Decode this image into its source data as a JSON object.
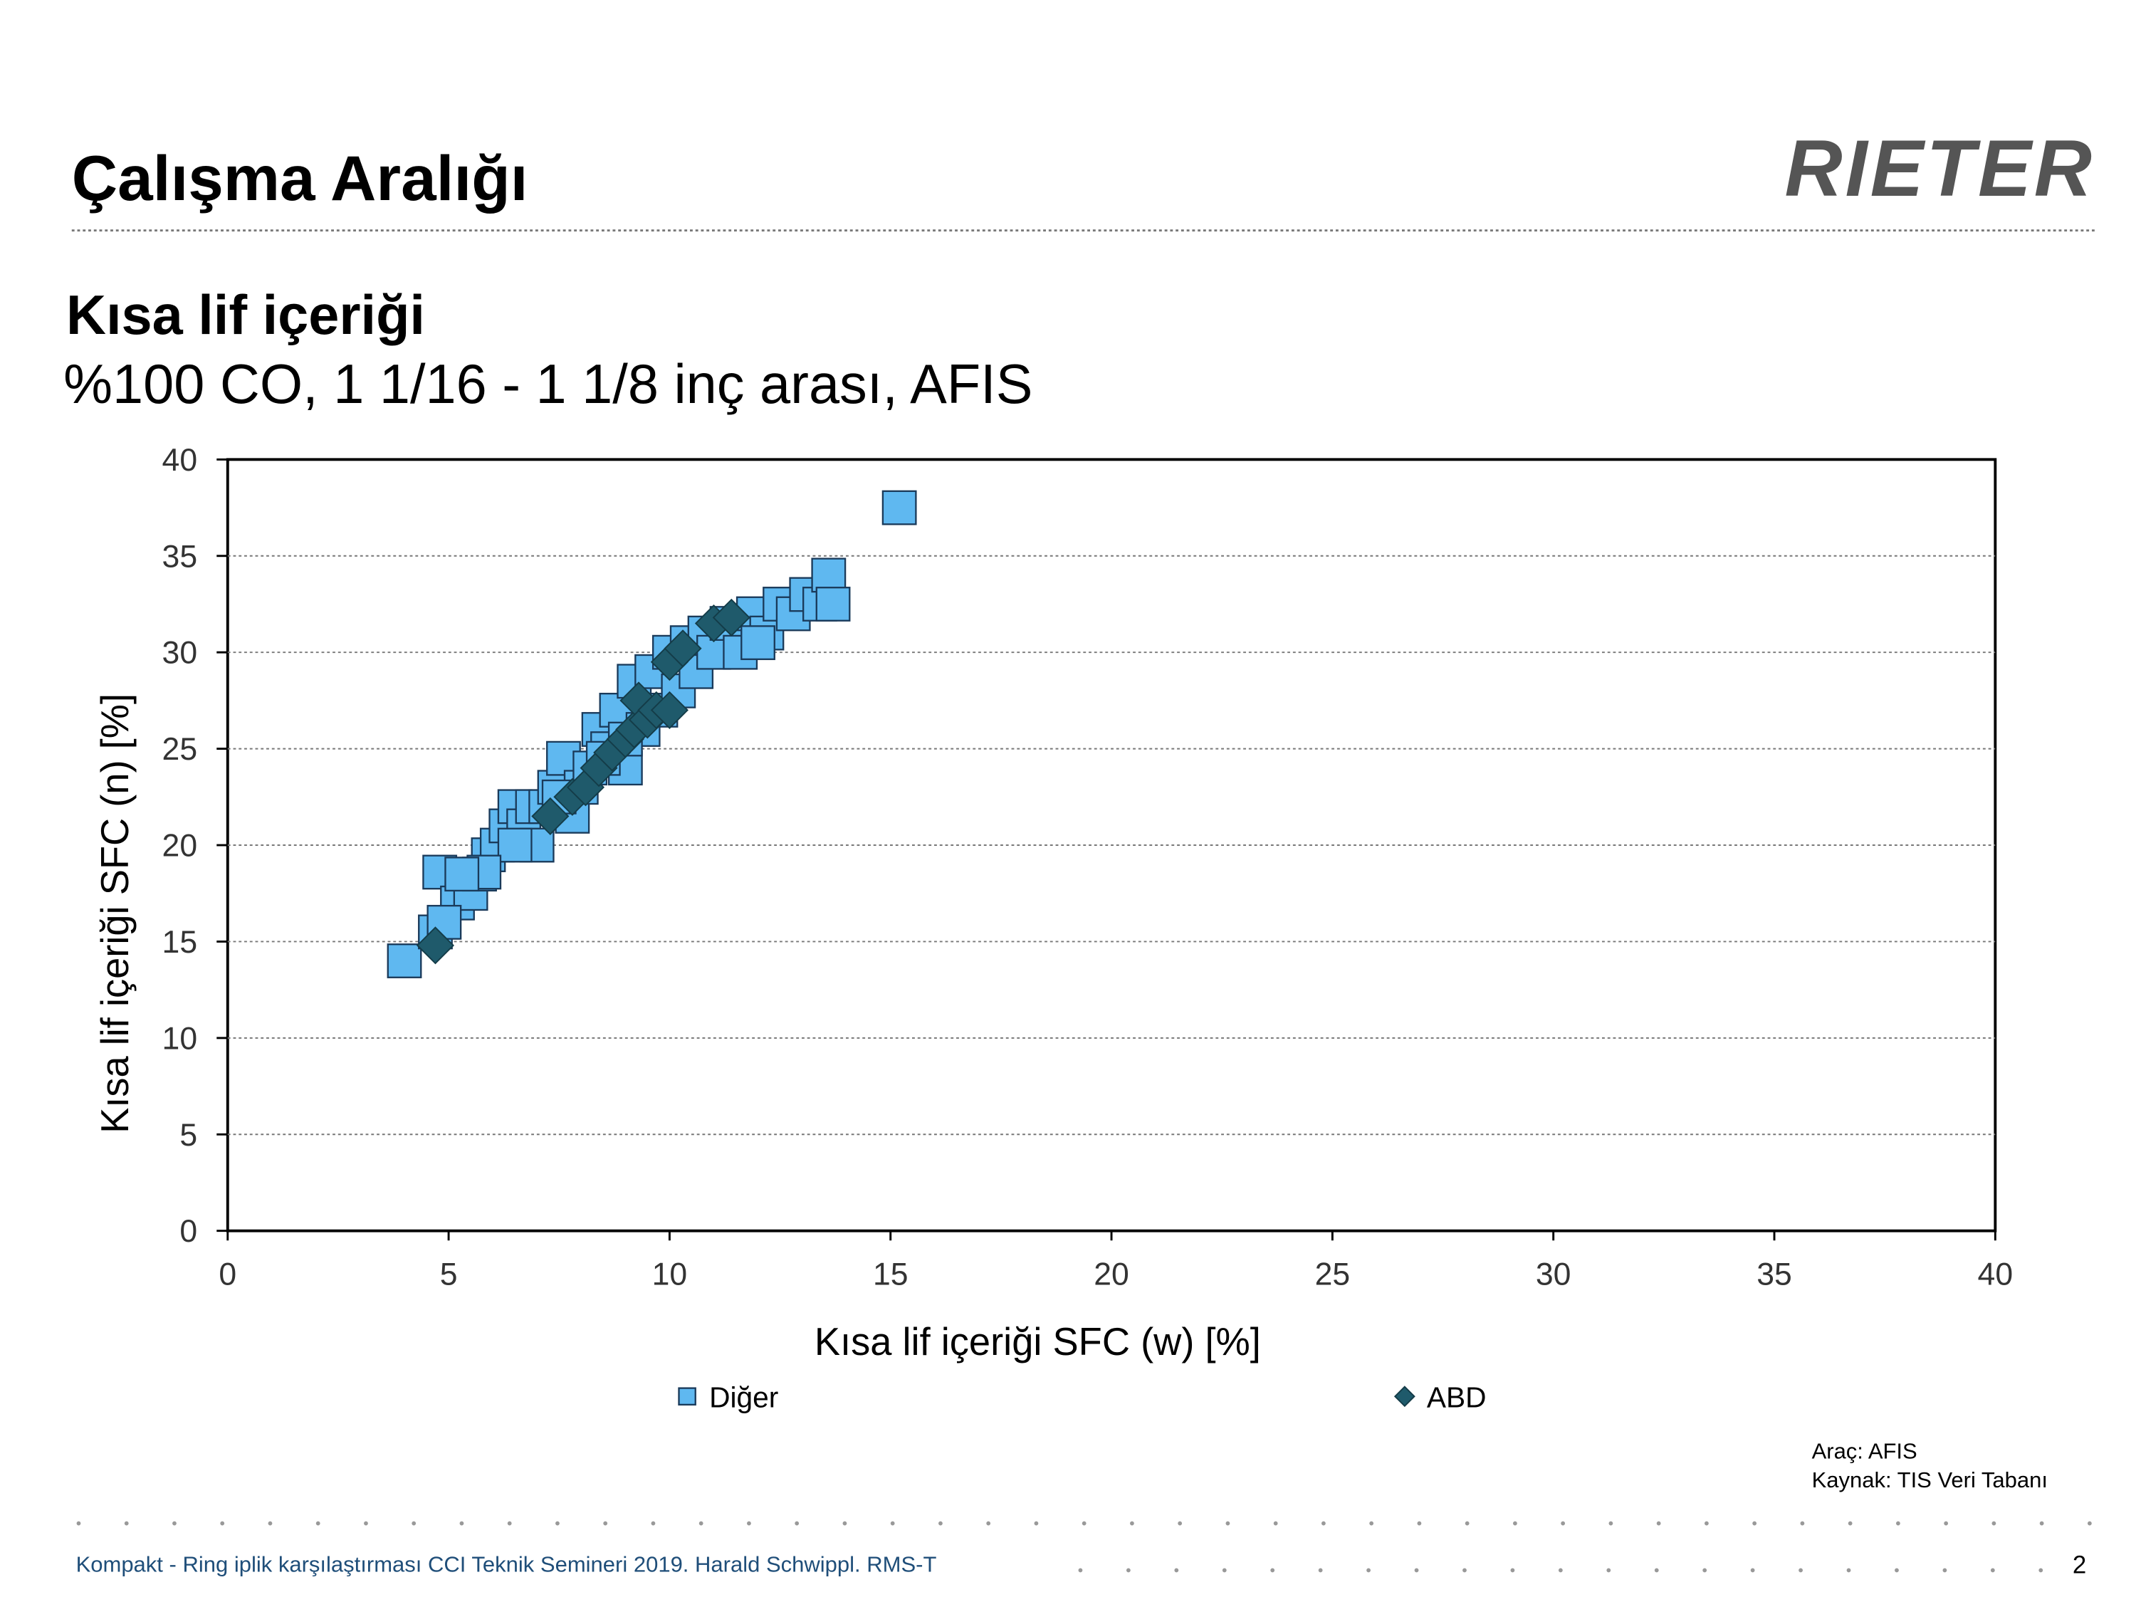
{
  "header": {
    "title": "Çalışma Aralığı",
    "logo": "RIETER"
  },
  "chart_data": {
    "type": "scatter",
    "title": "Kısa lif içeriği",
    "subtitle": "%100 CO, 1 1/16 - 1 1/8 inç arası, AFIS",
    "x_label": "Kısa lif içeriği SFC (w) [%]",
    "y_label": "Kısa lif içeriği SFC (n) [%]",
    "xlim": [
      0,
      40
    ],
    "ylim": [
      0,
      40
    ],
    "xticks": [
      0,
      5,
      10,
      15,
      20,
      25,
      30,
      35,
      40
    ],
    "yticks": [
      0,
      5,
      10,
      15,
      20,
      25,
      30,
      35,
      40
    ],
    "grid": true,
    "legend": "bottom",
    "series": [
      {
        "name": "Diğer",
        "color": "#5fb8f0",
        "marker": "square",
        "x": [
          4,
          15.2,
          4.7,
          4.8,
          5.2,
          5.5,
          5.7,
          5.9,
          6.1,
          6.3,
          6.5,
          6.7,
          6.9,
          7,
          7.2,
          7.4,
          7.6,
          7.8,
          8,
          8.2,
          8.4,
          8.6,
          8.8,
          9,
          9.2,
          9.4,
          9.6,
          9.8,
          10,
          10.2,
          10.4,
          10.6,
          10.8,
          11,
          11.3,
          11.6,
          11.9,
          12.2,
          12.5,
          12.8,
          13.1,
          13.4,
          13.6,
          13.7,
          12,
          9,
          8.5,
          7.5,
          6.5,
          5.8,
          5.3,
          4.9
        ],
        "values": [
          14,
          37.5,
          15.5,
          18.6,
          17,
          17.5,
          18.5,
          19.5,
          20,
          21,
          22,
          21,
          22,
          20,
          22,
          23,
          24.5,
          21.5,
          23,
          24,
          26,
          25,
          27,
          24,
          28.5,
          26,
          29,
          27,
          30,
          28,
          30.5,
          29,
          31,
          30,
          31.5,
          30,
          32,
          31,
          32.5,
          32,
          33,
          32.5,
          34,
          32.5,
          30.5,
          25.5,
          24.5,
          22.5,
          20,
          18.6,
          18.5,
          16
        ]
      },
      {
        "name": "ABD",
        "color": "#1f5a6b",
        "marker": "diamond",
        "x": [
          4.7,
          7.3,
          7.8,
          8.1,
          8.4,
          8.7,
          9,
          9.2,
          9.3,
          9.5,
          9.7,
          10,
          10.3,
          10,
          11,
          11.4
        ],
        "values": [
          14.8,
          21.5,
          22.5,
          23,
          24,
          24.8,
          25.5,
          26,
          27.5,
          26.5,
          27,
          29.5,
          30.2,
          27,
          31.5,
          31.8
        ]
      }
    ]
  },
  "source": {
    "tool": "Araç: AFIS",
    "source": "Kaynak: TIS Veri Tabanı"
  },
  "footer": {
    "text": "Kompakt - Ring iplik karşılaştırması CCI Teknik Semineri 2019. Harald Schwippl. RMS-T",
    "page": "2"
  }
}
